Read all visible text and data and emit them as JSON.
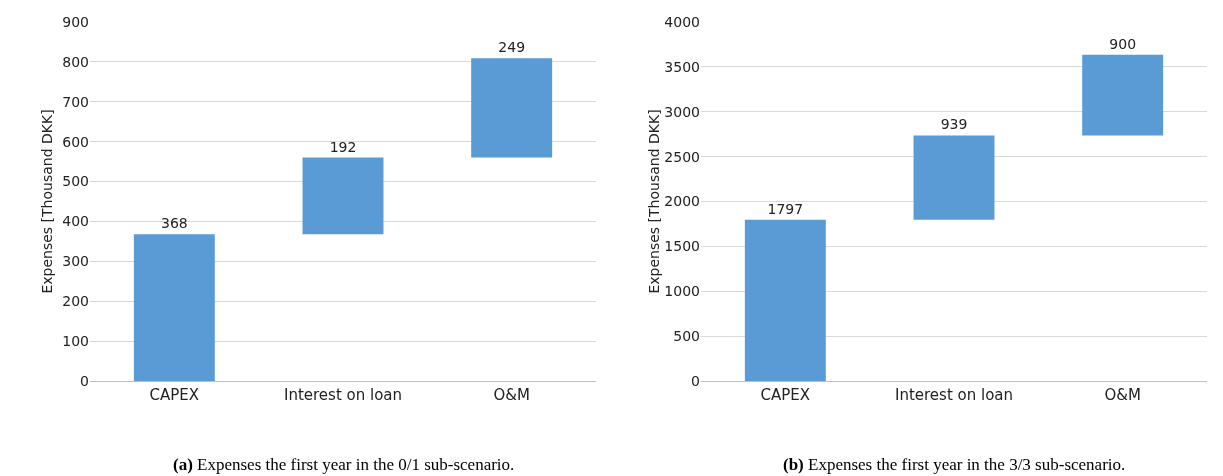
{
  "chart_data": [
    {
      "type": "bar",
      "categories": [
        "CAPEX",
        "Interest on loan",
        "O&M"
      ],
      "values": [
        368,
        192,
        249
      ],
      "base": [
        0,
        368,
        560
      ],
      "color": "#5b9bd5",
      "ylabel": "Expenses [Thousand DKK]",
      "ylim": [
        0,
        900
      ],
      "yticks": [
        0,
        100,
        200,
        300,
        400,
        500,
        600,
        700,
        800,
        900
      ],
      "grid": "y",
      "data_labels": true,
      "annotations": [
        "(a) Expenses the first year in the 0/1 sub-scenario."
      ]
    },
    {
      "type": "bar",
      "categories": [
        "CAPEX",
        "Interest on loan",
        "O&M"
      ],
      "values": [
        1797,
        939,
        900
      ],
      "base": [
        0,
        1797,
        2736
      ],
      "color": "#5b9bd5",
      "ylabel": "Expenses [Thousand DKK]",
      "ylim": [
        0,
        4000
      ],
      "yticks": [
        0,
        500,
        1000,
        1500,
        2000,
        2500,
        3000,
        3500,
        4000
      ],
      "grid": "y",
      "data_labels": true,
      "annotations": [
        "(b) Expenses the first year in the 3/3 sub-scenario."
      ]
    }
  ]
}
